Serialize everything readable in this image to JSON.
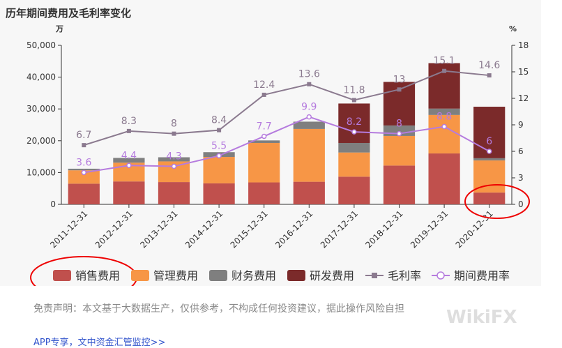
{
  "title": "历年期间费用及毛利率变化",
  "disclaimer": "免责声明：本文基于大数据生产，仅供参考，不构成任何投资建议，据此操作风险自担",
  "footer_link": "APP专享，文中资金汇管监控>>",
  "watermark": "WikiFX",
  "chart_data": {
    "type": "bar",
    "categories": [
      "2011-12-31",
      "2012-12-31",
      "2013-12-31",
      "2014-12-31",
      "2015-12-31",
      "2016-12-31",
      "2017-12-31",
      "2018-12-31",
      "2019-12-31",
      "2020-12-31"
    ],
    "left_unit": "万",
    "right_unit": "%",
    "ylim_left": [
      0,
      50000
    ],
    "ylim_right": [
      0,
      18
    ],
    "left_ticks": [
      "0",
      "10,000",
      "20,000",
      "30,000",
      "40,000",
      "50,000"
    ],
    "right_ticks": [
      "0",
      "3",
      "6",
      "9",
      "12",
      "15",
      "18"
    ],
    "stacked_series": [
      {
        "name": "销售费用",
        "color": "#c0504d",
        "values": [
          6500,
          7200,
          7000,
          6600,
          6900,
          7100,
          8700,
          12200,
          16000,
          3700
        ]
      },
      {
        "name": "管理费用",
        "color": "#f79646",
        "values": [
          4200,
          5900,
          6500,
          8300,
          12400,
          16600,
          7600,
          9300,
          12100,
          10100
        ]
      },
      {
        "name": "财务费用",
        "color": "#7f7f7f",
        "values": [
          500,
          1500,
          1300,
          1500,
          800,
          2300,
          3000,
          3300,
          2000,
          700
        ]
      },
      {
        "name": "研发费用",
        "color": "#7b2a2a",
        "values": [
          0,
          0,
          0,
          0,
          0,
          0,
          12400,
          13700,
          14300,
          16200
        ]
      }
    ],
    "line_series": [
      {
        "name": "毛利率",
        "color": "#8b7a8f",
        "values": [
          6.7,
          8.3,
          8,
          8.4,
          12.4,
          13.6,
          11.8,
          13,
          15.1,
          14.6
        ]
      },
      {
        "name": "期间费用率",
        "color": "#b57bde",
        "values": [
          3.6,
          4.4,
          4.3,
          5.5,
          7.7,
          9.9,
          8.2,
          8,
          8.8,
          6
        ]
      }
    ]
  }
}
